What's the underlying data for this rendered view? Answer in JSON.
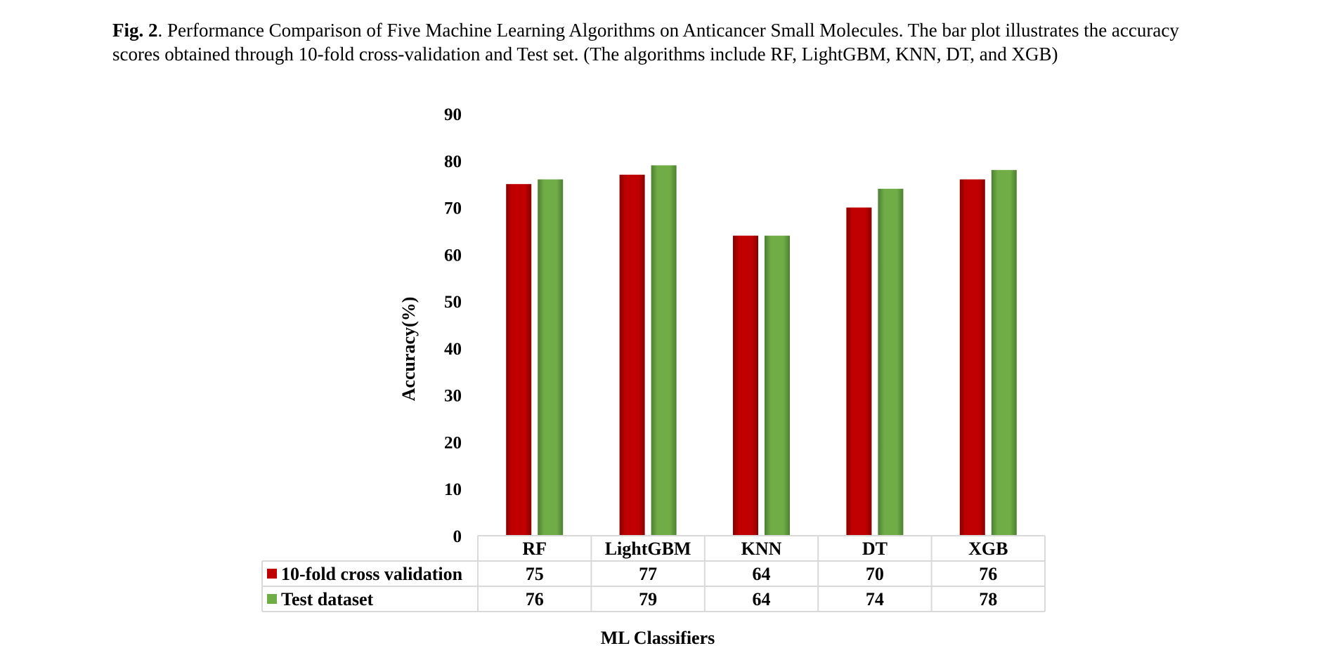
{
  "caption": {
    "fig_label": "Fig. 2",
    "text": ".  Performance Comparison of Five Machine Learning Algorithms on Anticancer Small Molecules. The bar plot illustrates the accuracy scores obtained through 10-fold cross-validation and Test set. (The algorithms include RF, LightGBM, KNN, DT, and XGB)"
  },
  "chart_data": {
    "type": "bar",
    "categories": [
      "RF",
      "LightGBM",
      "KNN",
      "DT",
      "XGB"
    ],
    "series": [
      {
        "name": "10-fold cross validation",
        "values": [
          75,
          77,
          64,
          70,
          76
        ],
        "color": "#c00000"
      },
      {
        "name": "Test dataset",
        "values": [
          76,
          79,
          64,
          74,
          78
        ],
        "color": "#70ad47"
      }
    ],
    "ylabel": "Accuracy(%)",
    "xlabel": "ML Classifiers",
    "ylim": [
      0,
      90
    ],
    "yticks": [
      0,
      10,
      20,
      30,
      40,
      50,
      60,
      70,
      80,
      90
    ],
    "grid": false,
    "legend": "data-table-left"
  }
}
